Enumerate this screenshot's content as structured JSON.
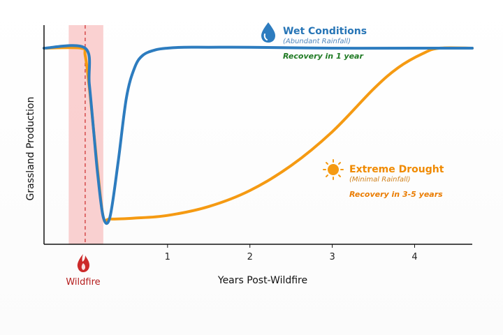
{
  "chart_data": {
    "type": "line",
    "xlabel": "Years Post-Wildfire",
    "ylabel": "Grassland Production",
    "xlim": [
      -0.5,
      4.7
    ],
    "ylim": [
      0,
      1.07
    ],
    "x_ticks": [
      1,
      2,
      3,
      4
    ],
    "event": {
      "label": "Wildfire",
      "x": 0,
      "shaded_range": [
        -0.2,
        0.22
      ],
      "icon": "fire-icon",
      "color": "#cc2a2a"
    },
    "series": [
      {
        "name": "Wet Conditions",
        "note": "(Abundant Rainfall)",
        "recovery": "Recovery in 1 year",
        "icon": "water-drop-icon",
        "color": "#2d7cbf",
        "x": [
          -0.5,
          0.0,
          0.05,
          0.1,
          0.15,
          0.22,
          0.3,
          0.4,
          0.5,
          0.6,
          0.7,
          0.85,
          1.0,
          1.2,
          1.5,
          2.0,
          3.0,
          4.0,
          4.7
        ],
        "y": [
          1.0,
          1.0,
          0.8,
          0.55,
          0.3,
          0.05,
          0.05,
          0.36,
          0.72,
          0.89,
          0.96,
          0.99,
          1.0,
          1.005,
          1.005,
          1.005,
          1.0,
          1.0,
          1.0
        ]
      },
      {
        "name": "Extreme Drought",
        "note": "(Minimal Rainfall)",
        "recovery": "Recovery in 3-5 years",
        "icon": "sun-icon",
        "color": "#f59a12",
        "x": [
          -0.5,
          -0.05,
          0.0,
          0.05,
          0.1,
          0.15,
          0.22,
          0.3,
          0.6,
          1.0,
          1.5,
          2.0,
          2.5,
          3.0,
          3.5,
          3.8,
          4.1,
          4.3,
          4.7
        ],
        "y": [
          1.0,
          1.0,
          0.96,
          0.78,
          0.55,
          0.32,
          0.05,
          0.04,
          0.045,
          0.06,
          0.11,
          0.2,
          0.34,
          0.53,
          0.77,
          0.89,
          0.97,
          1.0,
          1.0
        ]
      }
    ]
  }
}
